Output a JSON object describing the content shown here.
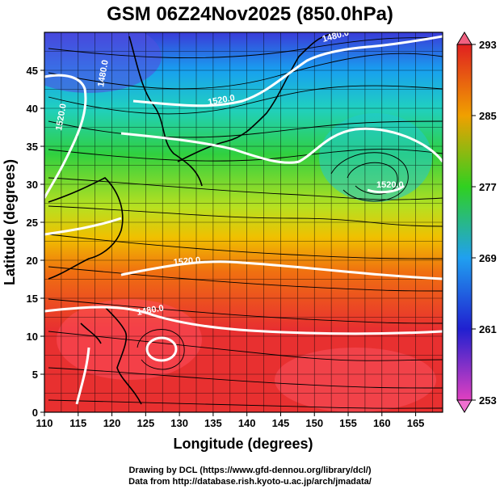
{
  "title": "GSM 06Z24Nov2025 (850.0hPa)",
  "x_axis": {
    "label": "Longitude (degrees)",
    "range": [
      110,
      169
    ],
    "ticks": [
      "110",
      "115",
      "120",
      "125",
      "130",
      "135",
      "140",
      "145",
      "150",
      "155",
      "160",
      "165"
    ]
  },
  "y_axis": {
    "label": "Latitude (degrees)",
    "range": [
      0,
      50
    ],
    "ticks": [
      "0",
      "5",
      "10",
      "15",
      "20",
      "25",
      "30",
      "35",
      "40",
      "45"
    ]
  },
  "colorbar": {
    "ticks": [
      "253",
      "261",
      "269",
      "277",
      "285",
      "293"
    ],
    "colors": [
      "#e040c0",
      "#2020d0",
      "#20a0f0",
      "#30d020",
      "#f0a000",
      "#e02020"
    ]
  },
  "contour_labels": [
    {
      "text": "1480.0"
    },
    {
      "text": "1520.0"
    },
    {
      "text": "1520.0"
    },
    {
      "text": "1480.0"
    },
    {
      "text": "1480.0"
    },
    {
      "text": "1520.0"
    },
    {
      "text": "1520.0"
    }
  ],
  "footer": {
    "line1": "Drawing by DCL (https://www.gfd-dennou.org/library/dcl/)",
    "line2": "Data from http://database.rish.kyoto-u.ac.jp/arch/jmadata/"
  }
}
